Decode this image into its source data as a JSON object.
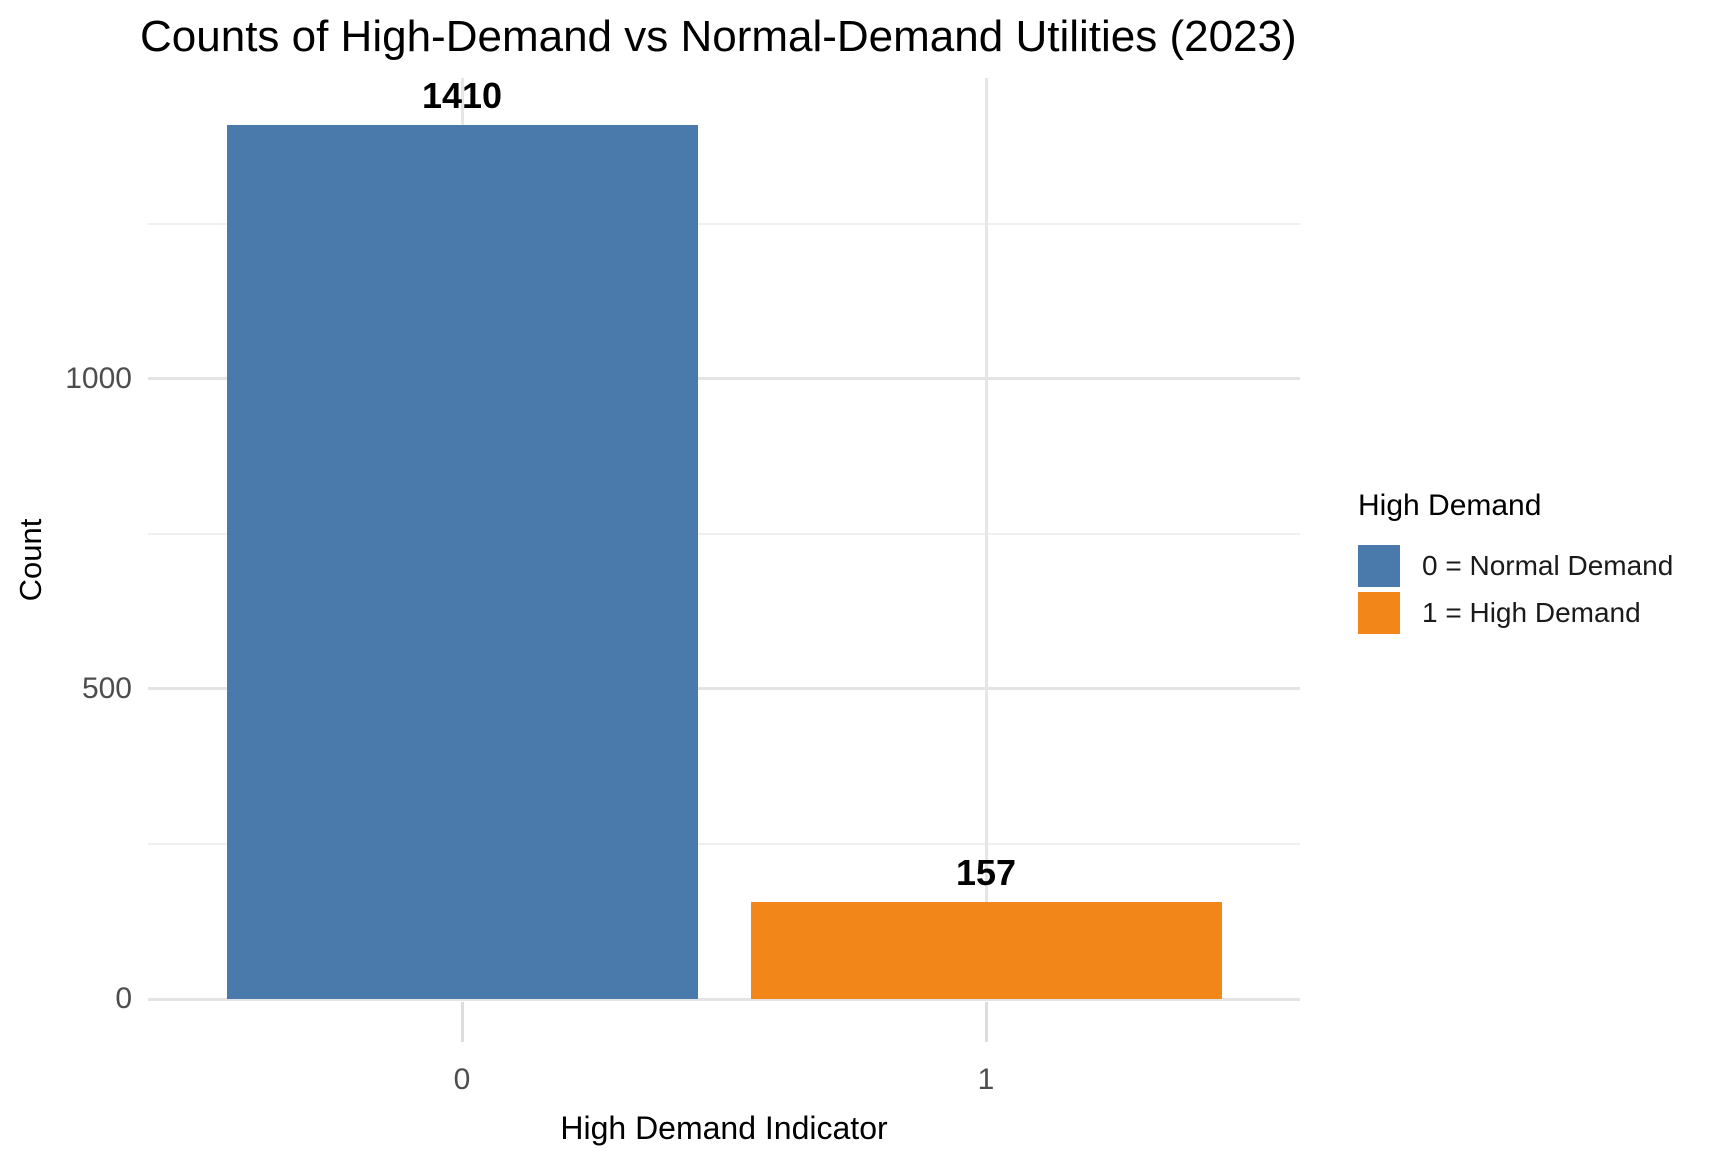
{
  "title": "Counts of High-Demand vs Normal-Demand Utilities (2023)",
  "axes": {
    "x_label": "High Demand Indicator",
    "y_label": "Count"
  },
  "legend": {
    "title": "High Demand",
    "items": [
      {
        "label": "0 = Normal Demand",
        "color": "#4A79AC"
      },
      {
        "label": "1 = High Demand",
        "color": "#F28618"
      }
    ]
  },
  "chart_data": {
    "type": "bar",
    "title": "Counts of High-Demand vs Normal-Demand Utilities (2023)",
    "xlabel": "High Demand Indicator",
    "ylabel": "Count",
    "categories": [
      "0",
      "1"
    ],
    "values": [
      1410,
      157
    ],
    "bar_labels": [
      "1410",
      "157"
    ],
    "colors": [
      "#4A79AC",
      "#F28618"
    ],
    "ylim": [
      0,
      1485
    ],
    "y_major_ticks": [
      0,
      500,
      1000
    ],
    "y_tick_labels": [
      "0",
      "500",
      "1000"
    ],
    "y_minor_gridlines": [
      250,
      750,
      1250
    ],
    "grid": true,
    "background": "#ffffff",
    "legend_position": "right"
  }
}
